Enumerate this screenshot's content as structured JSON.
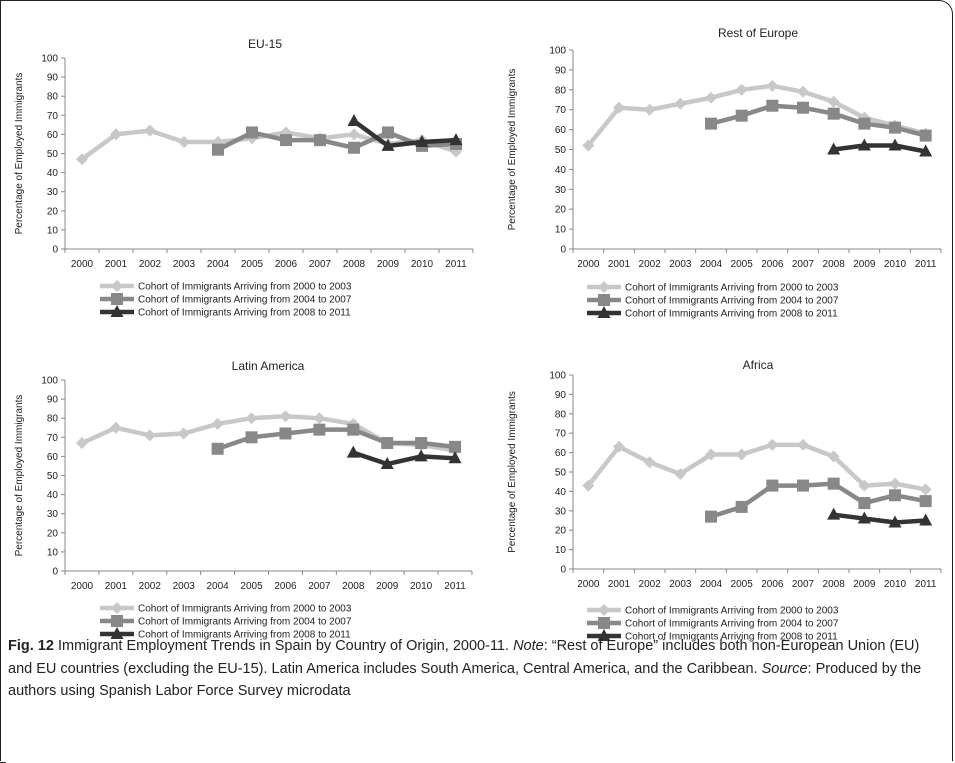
{
  "caption": {
    "label": "Fig. 12",
    "title": "Immigrant Employment Trends in Spain by Country of Origin, 2000-11.",
    "note_label": "Note",
    "note_text": ": “Rest of Europe” includes both non-European Union (EU) and EU countries (excluding the EU-15). Latin America includes South America, Central America, and the Caribbean.",
    "source_label": "Source",
    "source_text": ": Produced by the authors using Spanish Labor Force Survey microdata"
  },
  "colors": {
    "cohort1": "#c8c8c8",
    "cohort2": "#888888",
    "cohort3": "#333333"
  },
  "chart_data": [
    {
      "type": "line",
      "title": "EU-15",
      "ylabel": "Percentage of Employed Immigrants",
      "xlabel": "",
      "ylim": [
        0,
        100
      ],
      "yticks": [
        "0",
        "10",
        "20",
        "30",
        "40",
        "50",
        "60",
        "70",
        "80",
        "90",
        "100"
      ],
      "categories": [
        "2000",
        "2001",
        "2002",
        "2003",
        "2004",
        "2005",
        "2006",
        "2007",
        "2008",
        "2009",
        "2010",
        "2011"
      ],
      "legend_position": "bottom",
      "series": [
        {
          "name": "Cohort of Immigrants Arriving from 2000 to 2003",
          "marker": "diamond",
          "values": [
            47,
            60,
            62,
            56,
            56,
            58,
            61,
            58,
            60,
            55,
            57,
            51
          ]
        },
        {
          "name": "Cohort of Immigrants Arriving from 2004 to 2007",
          "marker": "square",
          "values": [
            null,
            null,
            null,
            null,
            52,
            61,
            57,
            57,
            53,
            61,
            54,
            55
          ]
        },
        {
          "name": "Cohort of Immigrants Arriving from 2008 to 2011",
          "marker": "triangle",
          "values": [
            null,
            null,
            null,
            null,
            null,
            null,
            null,
            null,
            67,
            54,
            56,
            57
          ]
        }
      ]
    },
    {
      "type": "line",
      "title": "Rest of Europe",
      "ylabel": "Percentage of Employed Immigrants",
      "xlabel": "",
      "ylim": [
        0,
        100
      ],
      "yticks": [
        "0",
        "10",
        "20",
        "30",
        "40",
        "50",
        "60",
        "70",
        "80",
        "90",
        "100"
      ],
      "categories": [
        "2000",
        "2001",
        "2002",
        "2003",
        "2004",
        "2005",
        "2006",
        "2007",
        "2008",
        "2009",
        "2010",
        "2011"
      ],
      "legend_position": "bottom",
      "series": [
        {
          "name": "Cohort of Immigrants Arriving from 2000 to 2003",
          "marker": "diamond",
          "values": [
            52,
            71,
            70,
            73,
            76,
            80,
            82,
            79,
            74,
            66,
            62,
            58
          ]
        },
        {
          "name": "Cohort of Immigrants Arriving from 2004 to 2007",
          "marker": "square",
          "values": [
            null,
            null,
            null,
            null,
            63,
            67,
            72,
            71,
            68,
            63,
            61,
            57
          ]
        },
        {
          "name": "Cohort of Immigrants Arriving from 2008 to 2011",
          "marker": "triangle",
          "values": [
            null,
            null,
            null,
            null,
            null,
            null,
            null,
            null,
            50,
            52,
            52,
            49
          ]
        }
      ]
    },
    {
      "type": "line",
      "title": "Latin America",
      "ylabel": "Percentage of Employed Immigrants",
      "xlabel": "",
      "ylim": [
        0,
        100
      ],
      "yticks": [
        "0",
        "10",
        "20",
        "30",
        "40",
        "50",
        "60",
        "70",
        "80",
        "90",
        "100"
      ],
      "categories": [
        "2000",
        "2001",
        "2002",
        "2003",
        "2004",
        "2005",
        "2006",
        "2007",
        "2008",
        "2009",
        "2010",
        "2011"
      ],
      "legend_position": "bottom",
      "series": [
        {
          "name": "Cohort of Immigrants Arriving from 2000 to 2003",
          "marker": "diamond",
          "values": [
            67,
            75,
            71,
            72,
            77,
            80,
            81,
            80,
            77,
            67,
            66,
            63
          ]
        },
        {
          "name": "Cohort of Immigrants Arriving from 2004 to 2007",
          "marker": "square",
          "values": [
            null,
            null,
            null,
            null,
            64,
            70,
            72,
            74,
            74,
            67,
            67,
            65
          ]
        },
        {
          "name": "Cohort of Immigrants Arriving from 2008 to 2011",
          "marker": "triangle",
          "values": [
            null,
            null,
            null,
            null,
            null,
            null,
            null,
            null,
            62,
            56,
            60,
            59
          ]
        }
      ]
    },
    {
      "type": "line",
      "title": "Africa",
      "ylabel": "Percentage of Employed Immigrants",
      "xlabel": "",
      "ylim": [
        0,
        100
      ],
      "yticks": [
        "0",
        "10",
        "20",
        "30",
        "40",
        "50",
        "60",
        "70",
        "80",
        "90",
        "100"
      ],
      "categories": [
        "2000",
        "2001",
        "2002",
        "2003",
        "2004",
        "2005",
        "2006",
        "2007",
        "2008",
        "2009",
        "2010",
        "2011"
      ],
      "legend_position": "bottom",
      "series": [
        {
          "name": "Cohort of Immigrants Arriving from 2000 to 2003",
          "marker": "diamond",
          "values": [
            43,
            63,
            55,
            49,
            59,
            59,
            64,
            64,
            58,
            43,
            44,
            41
          ]
        },
        {
          "name": "Cohort of Immigrants Arriving from 2004 to 2007",
          "marker": "square",
          "values": [
            null,
            null,
            null,
            null,
            27,
            32,
            43,
            43,
            44,
            34,
            38,
            35
          ]
        },
        {
          "name": "Cohort of Immigrants Arriving from 2008 to 2011",
          "marker": "triangle",
          "values": [
            null,
            null,
            null,
            null,
            null,
            null,
            null,
            null,
            28,
            26,
            24,
            25
          ]
        }
      ]
    }
  ]
}
